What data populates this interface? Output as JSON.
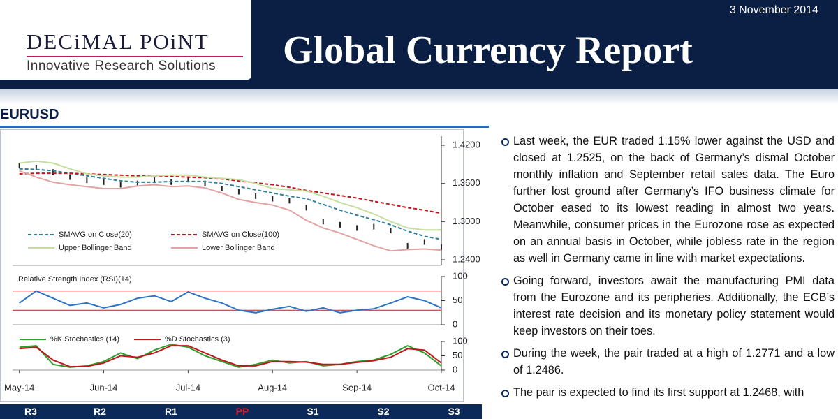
{
  "header": {
    "logo_name": "DECiMAL POiNT",
    "logo_tagline": "Innovative Research Solutions",
    "title": "Global Currency Report",
    "date": "3 November 2014"
  },
  "section": {
    "title": "EURUSD"
  },
  "chart_data": [
    {
      "type": "line",
      "xlim": [
        -0.08,
        5.0
      ],
      "ylim": [
        1.2312,
        1.4343
      ],
      "yticks": [
        {
          "value": 1.42,
          "label": "1.4200"
        },
        {
          "value": 1.36,
          "label": "1.3600"
        },
        {
          "value": 1.3,
          "label": "1.3000"
        },
        {
          "value": 1.24,
          "label": "1.2400"
        }
      ],
      "x": [
        0,
        0.2,
        0.4,
        0.6,
        0.8,
        1.0,
        1.2,
        1.4,
        1.6,
        1.8,
        2.0,
        2.2,
        2.4,
        2.6,
        2.8,
        3.0,
        3.2,
        3.4,
        3.6,
        3.8,
        4.0,
        4.2,
        4.4,
        4.6,
        4.8,
        5.0
      ],
      "close": [
        1.388,
        1.385,
        1.378,
        1.37,
        1.365,
        1.362,
        1.358,
        1.36,
        1.365,
        1.362,
        1.366,
        1.36,
        1.352,
        1.347,
        1.34,
        1.336,
        1.333,
        1.322,
        1.3,
        1.295,
        1.29,
        1.292,
        1.286,
        1.262,
        1.268,
        1.26
      ],
      "close_color": "#222222",
      "series": [
        {
          "name": "SMAVG on Close(20)",
          "color": "#2e7d9a",
          "dash": "5,3",
          "values": [
            1.383,
            1.382,
            1.38,
            1.376,
            1.372,
            1.368,
            1.364,
            1.362,
            1.362,
            1.363,
            1.363,
            1.363,
            1.36,
            1.355,
            1.35,
            1.345,
            1.34,
            1.336,
            1.327,
            1.318,
            1.31,
            1.303,
            1.295,
            1.285,
            1.277,
            1.272
          ]
        },
        {
          "name": "SMAVG on Close(100)",
          "color": "#c0161c",
          "dash": "5,3",
          "values": [
            1.375,
            1.376,
            1.376,
            1.376,
            1.375,
            1.374,
            1.373,
            1.372,
            1.372,
            1.371,
            1.37,
            1.369,
            1.367,
            1.364,
            1.361,
            1.358,
            1.354,
            1.349,
            1.345,
            1.341,
            1.337,
            1.332,
            1.327,
            1.322,
            1.318,
            1.313
          ]
        },
        {
          "name": "Upper Bollinger Band",
          "color": "#c6dea0",
          "values": [
            1.392,
            1.395,
            1.392,
            1.383,
            1.375,
            1.372,
            1.37,
            1.37,
            1.372,
            1.373,
            1.373,
            1.37,
            1.368,
            1.366,
            1.36,
            1.352,
            1.35,
            1.348,
            1.34,
            1.33,
            1.322,
            1.312,
            1.3,
            1.29,
            1.287,
            1.287
          ]
        },
        {
          "name": "Lower Bollinger Band",
          "color": "#e3a3a3",
          "values": [
            1.38,
            1.37,
            1.362,
            1.358,
            1.355,
            1.352,
            1.352,
            1.356,
            1.358,
            1.355,
            1.356,
            1.353,
            1.345,
            1.335,
            1.33,
            1.326,
            1.318,
            1.302,
            1.29,
            1.282,
            1.272,
            1.262,
            1.254,
            1.256,
            1.257,
            1.255
          ]
        }
      ]
    },
    {
      "type": "line",
      "title": "Relative Strength Index (RSI)(14)",
      "xlim": [
        -0.08,
        5.0
      ],
      "ylim": [
        0,
        100
      ],
      "yticks": [
        0,
        50,
        100
      ],
      "levels": [
        70,
        30
      ],
      "level_color": "#b22222",
      "x": [
        0,
        0.2,
        0.4,
        0.6,
        0.8,
        1.0,
        1.2,
        1.4,
        1.6,
        1.8,
        2.0,
        2.2,
        2.4,
        2.6,
        2.8,
        3.0,
        3.2,
        3.4,
        3.6,
        3.8,
        4.0,
        4.2,
        4.4,
        4.6,
        4.8,
        5.0
      ],
      "series": [
        {
          "color": "#2f73c4",
          "values": [
            45,
            70,
            55,
            40,
            45,
            35,
            42,
            55,
            60,
            48,
            68,
            55,
            45,
            30,
            25,
            32,
            38,
            28,
            35,
            25,
            30,
            33,
            45,
            58,
            50,
            35
          ]
        }
      ]
    },
    {
      "type": "line",
      "xlim": [
        -0.08,
        5.0
      ],
      "ylim": [
        0,
        100
      ],
      "yticks": [
        0,
        50,
        100
      ],
      "xticks": [
        {
          "value": 0,
          "label": "May-14"
        },
        {
          "value": 1,
          "label": "Jun-14"
        },
        {
          "value": 2,
          "label": "Jul-14"
        },
        {
          "value": 3,
          "label": "Aug-14"
        },
        {
          "value": 4,
          "label": "Sep-14"
        },
        {
          "value": 5,
          "label": "Oct-14"
        }
      ],
      "x": [
        0,
        0.2,
        0.4,
        0.6,
        0.8,
        1.0,
        1.2,
        1.4,
        1.6,
        1.8,
        2.0,
        2.2,
        2.4,
        2.6,
        2.8,
        3.0,
        3.2,
        3.4,
        3.6,
        3.8,
        4.0,
        4.2,
        4.4,
        4.6,
        4.8,
        5.0
      ],
      "series": [
        {
          "name": "%K Stochastics (14)",
          "color": "#2ca02c",
          "values": [
            80,
            85,
            20,
            10,
            15,
            30,
            60,
            40,
            70,
            90,
            80,
            50,
            30,
            10,
            20,
            35,
            25,
            30,
            15,
            20,
            30,
            35,
            55,
            85,
            60,
            15
          ]
        },
        {
          "name": "%D Stochastics (3)",
          "color": "#c0161c",
          "values": [
            75,
            80,
            35,
            12,
            13,
            25,
            50,
            45,
            60,
            85,
            85,
            60,
            35,
            15,
            15,
            30,
            30,
            28,
            20,
            20,
            27,
            33,
            45,
            75,
            70,
            25
          ]
        }
      ]
    }
  ],
  "pivots": [
    "R3",
    "R2",
    "R1",
    "PP",
    "S1",
    "S2",
    "S3"
  ],
  "commentary": [
    "Last week, the EUR traded 1.15% lower against the USD and closed at 1.2525, on the back of Germany’s dismal October monthly inflation and September retail sales data. The Euro further lost ground after Germany’s IFO business climate for October eased to its lowest reading in almost two years. Meanwhile, consumer prices in the Eurozone rose as expected on an annual basis in October, while jobless rate in the region as well in Germany came in line with market expectations.",
    "Going forward, investors await the manufacturing PMI data from the Eurozone and its peripheries. Additionally, the ECB’s interest rate decision and its monetary policy statement would keep investors on their toes.",
    "During the week, the pair traded at a high of 1.2771 and a low of 1.2486.",
    "The pair is expected to find its first support at 1.2468, with"
  ]
}
